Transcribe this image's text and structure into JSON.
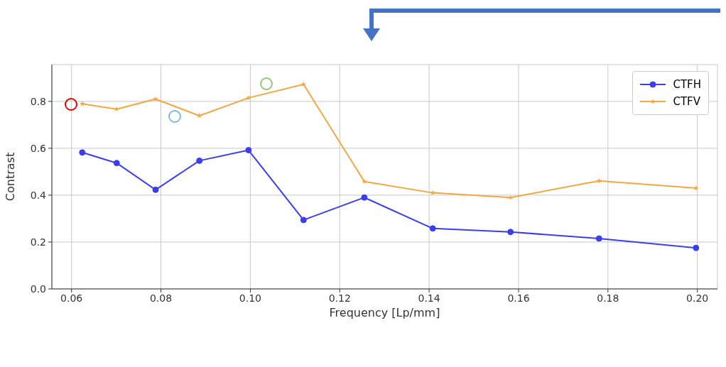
{
  "chart_data": {
    "type": "line",
    "xlabel": "Frequency [Lp/mm]",
    "ylabel": "Contrast",
    "x": [
      0.0624,
      0.0701,
      0.0788,
      0.0886,
      0.0996,
      0.1119,
      0.1255,
      0.1408,
      0.1582,
      0.178,
      0.1997
    ],
    "series": [
      {
        "name": "CTFH",
        "color": "#3b3ef0",
        "marker": "circle",
        "values": [
          0.582,
          0.537,
          0.423,
          0.547,
          0.592,
          0.294,
          0.39,
          0.258,
          0.243,
          0.215,
          0.175
        ]
      },
      {
        "name": "CTFV",
        "color": "#f5a640",
        "marker": "star",
        "values": [
          0.79,
          0.767,
          0.81,
          0.739,
          0.815,
          0.873,
          0.458,
          0.41,
          0.39,
          0.461,
          0.43
        ]
      }
    ],
    "xlim": [
      0.0556,
      0.2045
    ],
    "xticks": [
      {
        "value": 0.06,
        "label": "0.06"
      },
      {
        "value": 0.08,
        "label": "0.08"
      },
      {
        "value": 0.1,
        "label": "0.10"
      },
      {
        "value": 0.12,
        "label": "0.12"
      },
      {
        "value": 0.14,
        "label": "0.14"
      },
      {
        "value": 0.16,
        "label": "0.16"
      },
      {
        "value": 0.18,
        "label": "0.18"
      },
      {
        "value": 0.2,
        "label": "0.20"
      }
    ],
    "ylim": [
      0,
      0.957
    ],
    "yticks": [
      {
        "value": 0,
        "label": "0.0"
      },
      {
        "value": 0.2,
        "label": "0.2"
      },
      {
        "value": 0.4,
        "label": "0.4"
      },
      {
        "value": 0.6,
        "label": "0.6"
      },
      {
        "value": 0.8,
        "label": "0.8"
      }
    ],
    "grid": true,
    "legend": "top right",
    "line_style": "solid"
  }
}
